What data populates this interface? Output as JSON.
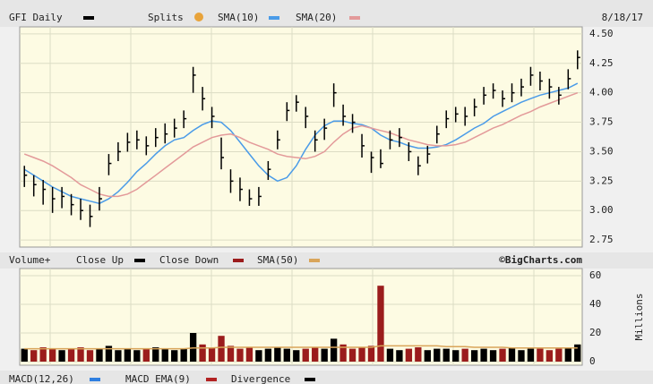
{
  "chart_data": [
    {
      "type": "ohlc",
      "title": "GFI Daily",
      "splits_label": "Splits",
      "date": "8/18/17",
      "bar_color": "#000000",
      "high": [
        3.38,
        3.3,
        3.26,
        3.2,
        3.2,
        3.14,
        3.1,
        3.05,
        3.2,
        3.48,
        3.58,
        3.66,
        3.68,
        3.63,
        3.7,
        3.74,
        3.78,
        3.85,
        4.22,
        4.05,
        3.88,
        3.62,
        3.35,
        3.28,
        3.18,
        3.2,
        3.42,
        3.68,
        3.92,
        3.98,
        3.88,
        3.68,
        3.78,
        4.08,
        3.9,
        3.82,
        3.65,
        3.5,
        3.52,
        3.68,
        3.7,
        3.58,
        3.46,
        3.55,
        3.72,
        3.85,
        3.88,
        3.88,
        3.95,
        4.05,
        4.08,
        4.02,
        4.08,
        4.12,
        4.22,
        4.18,
        4.12,
        4.05,
        4.2,
        4.36
      ],
      "low": [
        3.2,
        3.12,
        3.05,
        2.98,
        3.02,
        2.96,
        2.92,
        2.86,
        3.0,
        3.3,
        3.42,
        3.5,
        3.52,
        3.47,
        3.54,
        3.57,
        3.62,
        3.7,
        4.0,
        3.85,
        3.7,
        3.35,
        3.15,
        3.08,
        3.04,
        3.04,
        3.26,
        3.52,
        3.76,
        3.84,
        3.7,
        3.5,
        3.6,
        3.88,
        3.72,
        3.66,
        3.45,
        3.32,
        3.36,
        3.52,
        3.54,
        3.42,
        3.3,
        3.4,
        3.57,
        3.7,
        3.75,
        3.72,
        3.8,
        3.9,
        3.95,
        3.88,
        3.92,
        3.97,
        4.06,
        4.02,
        3.95,
        3.9,
        4.03,
        4.2
      ],
      "close": [
        3.3,
        3.22,
        3.18,
        3.1,
        3.12,
        3.05,
        3.0,
        2.95,
        3.1,
        3.4,
        3.5,
        3.58,
        3.6,
        3.55,
        3.62,
        3.65,
        3.7,
        3.78,
        4.15,
        3.95,
        3.8,
        3.45,
        3.25,
        3.18,
        3.1,
        3.12,
        3.35,
        3.6,
        3.85,
        3.92,
        3.8,
        3.6,
        3.7,
        4.0,
        3.8,
        3.75,
        3.55,
        3.45,
        3.4,
        3.6,
        3.62,
        3.5,
        3.38,
        3.48,
        3.65,
        3.78,
        3.82,
        3.8,
        3.88,
        3.98,
        4.02,
        3.95,
        4.0,
        4.05,
        4.15,
        4.1,
        4.05,
        3.98,
        4.12,
        4.3
      ],
      "series": [
        {
          "name": "SMA(10)",
          "color": "#4a9be8",
          "values": [
            3.35,
            3.3,
            3.25,
            3.2,
            3.16,
            3.12,
            3.1,
            3.08,
            3.06,
            3.1,
            3.16,
            3.24,
            3.33,
            3.4,
            3.48,
            3.55,
            3.6,
            3.62,
            3.68,
            3.73,
            3.76,
            3.75,
            3.68,
            3.58,
            3.48,
            3.38,
            3.3,
            3.25,
            3.28,
            3.38,
            3.52,
            3.64,
            3.72,
            3.76,
            3.76,
            3.74,
            3.73,
            3.7,
            3.64,
            3.6,
            3.58,
            3.55,
            3.53,
            3.53,
            3.54,
            3.56,
            3.6,
            3.65,
            3.7,
            3.74,
            3.8,
            3.84,
            3.88,
            3.92,
            3.95,
            3.98,
            4.0,
            4.02,
            4.04,
            4.08
          ]
        },
        {
          "name": "SMA(20)",
          "color": "#e39a9a",
          "values": [
            3.48,
            3.45,
            3.42,
            3.38,
            3.33,
            3.28,
            3.22,
            3.18,
            3.14,
            3.12,
            3.12,
            3.14,
            3.18,
            3.24,
            3.3,
            3.36,
            3.42,
            3.48,
            3.54,
            3.58,
            3.62,
            3.64,
            3.65,
            3.62,
            3.58,
            3.55,
            3.52,
            3.48,
            3.46,
            3.45,
            3.44,
            3.46,
            3.5,
            3.58,
            3.65,
            3.7,
            3.72,
            3.7,
            3.68,
            3.66,
            3.63,
            3.6,
            3.58,
            3.56,
            3.55,
            3.55,
            3.56,
            3.58,
            3.62,
            3.66,
            3.7,
            3.73,
            3.77,
            3.81,
            3.84,
            3.88,
            3.91,
            3.94,
            3.97,
            4.0
          ]
        }
      ],
      "ylim": [
        2.69,
        4.56
      ],
      "yticks": [
        2.75,
        {
          "value": 3,
          "label": "3.00"
        },
        3.25,
        {
          "value": 3.5,
          "label": "3.50"
        },
        3.75,
        {
          "value": 4,
          "label": "4.00"
        },
        4.25,
        {
          "value": 4.5,
          "label": "4.50"
        }
      ],
      "grid": true
    },
    {
      "type": "bar",
      "title": "Volume+",
      "credit": "©BigCharts.com",
      "ylabel": "Millions",
      "series": [
        {
          "name": "Close Up",
          "color": "#000000",
          "values": [
            9,
            null,
            null,
            null,
            8,
            null,
            null,
            null,
            9,
            11,
            8,
            9,
            8,
            null,
            10,
            9,
            8,
            9,
            20,
            null,
            null,
            null,
            null,
            null,
            null,
            8,
            9,
            10,
            9,
            8,
            null,
            null,
            9,
            16,
            null,
            null,
            null,
            null,
            null,
            9,
            8,
            null,
            null,
            8,
            9,
            9,
            8,
            null,
            8,
            9,
            8,
            null,
            10,
            8,
            9,
            null,
            null,
            null,
            10,
            12
          ]
        },
        {
          "name": "Close Down",
          "color": "#9b1c1c",
          "values": [
            null,
            8,
            10,
            9,
            null,
            9,
            10,
            8,
            null,
            null,
            null,
            null,
            null,
            9,
            null,
            null,
            null,
            null,
            null,
            12,
            10,
            18,
            11,
            9,
            10,
            null,
            null,
            null,
            null,
            null,
            9,
            10,
            null,
            null,
            12,
            9,
            10,
            11,
            53,
            null,
            null,
            9,
            10,
            null,
            null,
            null,
            null,
            9,
            null,
            null,
            null,
            9,
            null,
            null,
            null,
            9,
            8,
            9,
            null,
            null
          ]
        },
        {
          "name": "SMA(50)",
          "color": "#d9a55a",
          "type": "line",
          "values": [
            9,
            9,
            9,
            9,
            9,
            9,
            9,
            9,
            9,
            9,
            9,
            9,
            9,
            9,
            9,
            9,
            9,
            9,
            9.5,
            9.5,
            9.5,
            10,
            10,
            10,
            10,
            10,
            10,
            10,
            10,
            10,
            10,
            10,
            10,
            10,
            10,
            10,
            10,
            10,
            11,
            11,
            11,
            11,
            11,
            11,
            11,
            10.5,
            10.5,
            10.5,
            10,
            10,
            10,
            10,
            9.5,
            9.5,
            9.5,
            9.5,
            9.5,
            9.5,
            9.5,
            9.5
          ]
        }
      ],
      "ylim": [
        -2.5,
        65
      ],
      "yticks": [
        0,
        20,
        40,
        60
      ],
      "grid": true
    },
    {
      "type": "macd",
      "series": [
        {
          "name": "MACD(12,26)",
          "color": "#2f7fe0"
        },
        {
          "name": "MACD EMA(9)",
          "color": "#b22222"
        },
        {
          "name": "Divergence",
          "color": "#000000"
        }
      ]
    }
  ]
}
